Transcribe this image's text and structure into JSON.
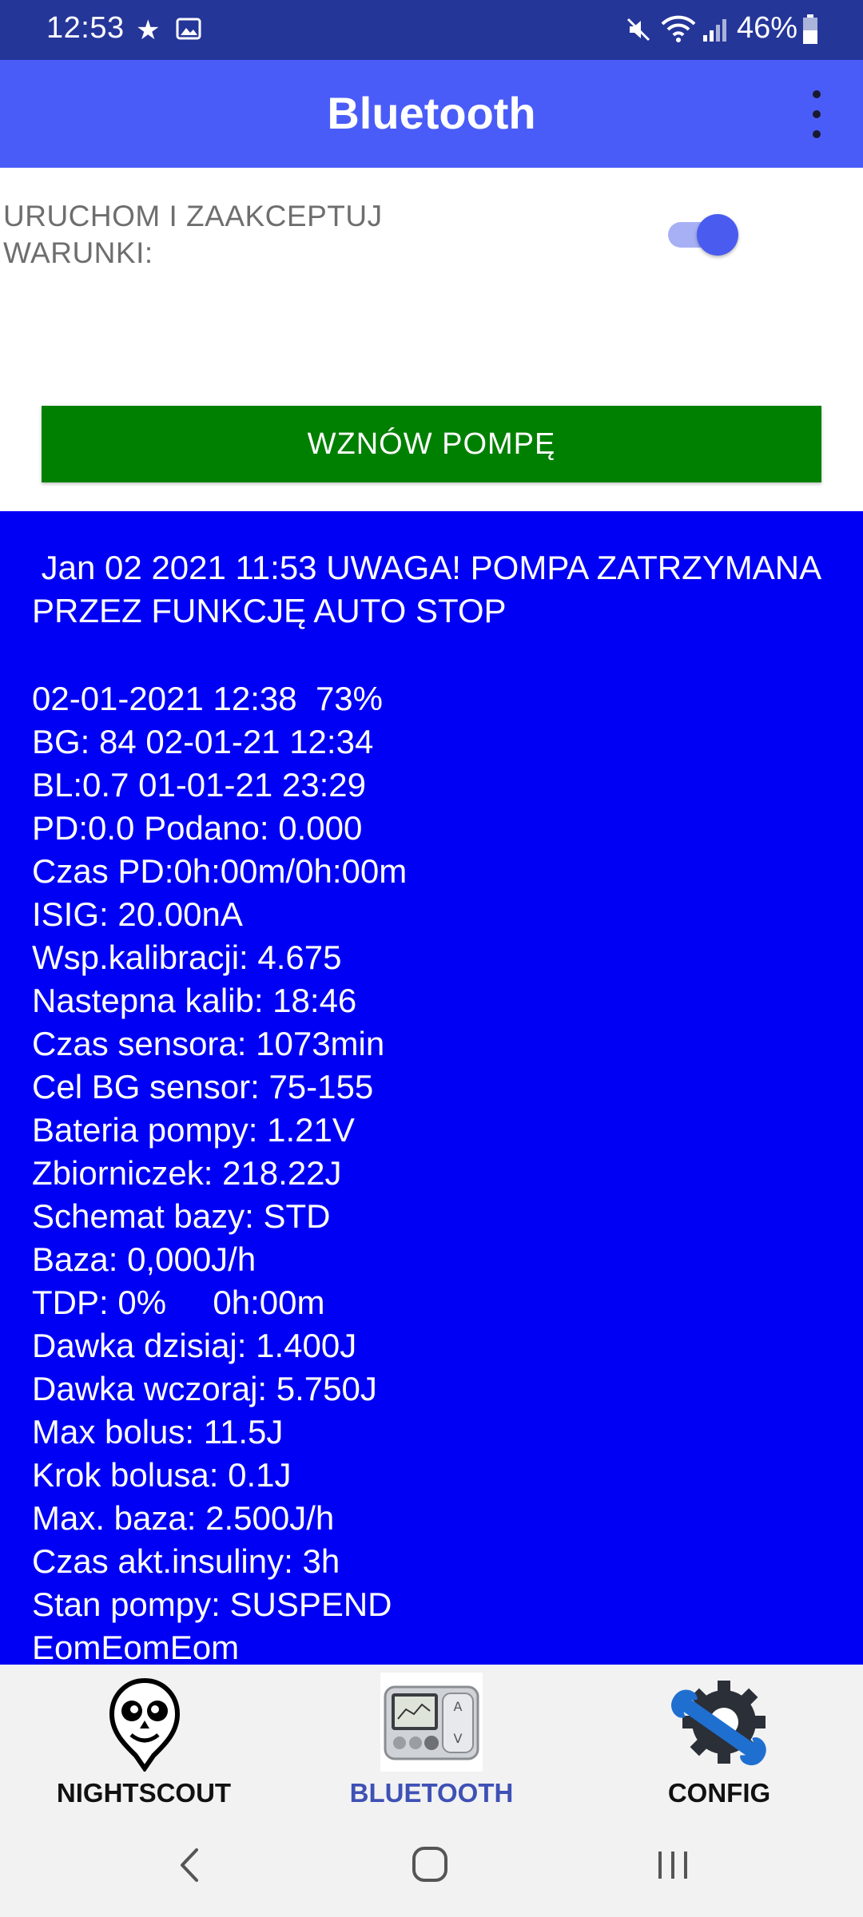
{
  "status_bar": {
    "time": "12:53",
    "battery": "46%",
    "icons": [
      "star-icon",
      "gallery-icon",
      "mute-icon",
      "wifi-icon",
      "signal-icon",
      "battery-icon"
    ]
  },
  "app_bar": {
    "title": "Bluetooth",
    "menu_icon": "overflow-menu-icon"
  },
  "toggle": {
    "label": "URUCHOM I ZAAKCEPTUJ WARUNKI:",
    "checked": true
  },
  "resume_button": {
    "label": "WZNÓW POMPĘ"
  },
  "info": {
    "alert": " Jan 02 2021 11:53 UWAGA! POMPA ZATRZYMANA PRZEZ FUNKCJĘ AUTO STOP",
    "lines": [
      "02-01-2021 12:38  73%",
      "BG: 84 02-01-21 12:34",
      "BL:0.7 01-01-21 23:29",
      "PD:0.0 Podano: 0.000",
      "Czas PD:0h:00m/0h:00m",
      "ISIG: 20.00nA",
      "Wsp.kalibracji: 4.675",
      "Nastepna kalib: 18:46",
      "Czas sensora: 1073min",
      "Cel BG sensor: 75-155",
      "Bateria pompy: 1.21V",
      "Zbiorniczek: 218.22J",
      "Schemat bazy: STD",
      "Baza: 0,000J/h",
      "TDP: 0%     0h:00m",
      "Dawka dzisiaj: 1.400J",
      "Dawka wczoraj: 5.750J",
      "Max bolus: 11.5J",
      "Krok bolusa: 0.1J",
      "Max. baza: 2.500J/h",
      "Czas akt.insuliny: 3h",
      "Stan pompy: SUSPEND",
      "EomEomEom"
    ]
  },
  "bottom_nav": {
    "items": [
      {
        "label": "NIGHTSCOUT",
        "icon": "nightscout-owl-icon",
        "active": false
      },
      {
        "label": "BLUETOOTH",
        "icon": "insulin-pump-image",
        "active": true
      },
      {
        "label": "CONFIG",
        "icon": "gear-wrench-icon",
        "active": false
      }
    ]
  },
  "colors": {
    "status_bar": "#253699",
    "app_bar": "#4a5cf8",
    "accent": "#4a5cf0",
    "button_green": "#008000",
    "info_bg": "#0000f5",
    "nav_active": "#3f51b5",
    "nav_inactive": "#111111"
  },
  "system_nav": {
    "icons": [
      "back-icon",
      "home-icon",
      "recent-apps-icon"
    ]
  }
}
